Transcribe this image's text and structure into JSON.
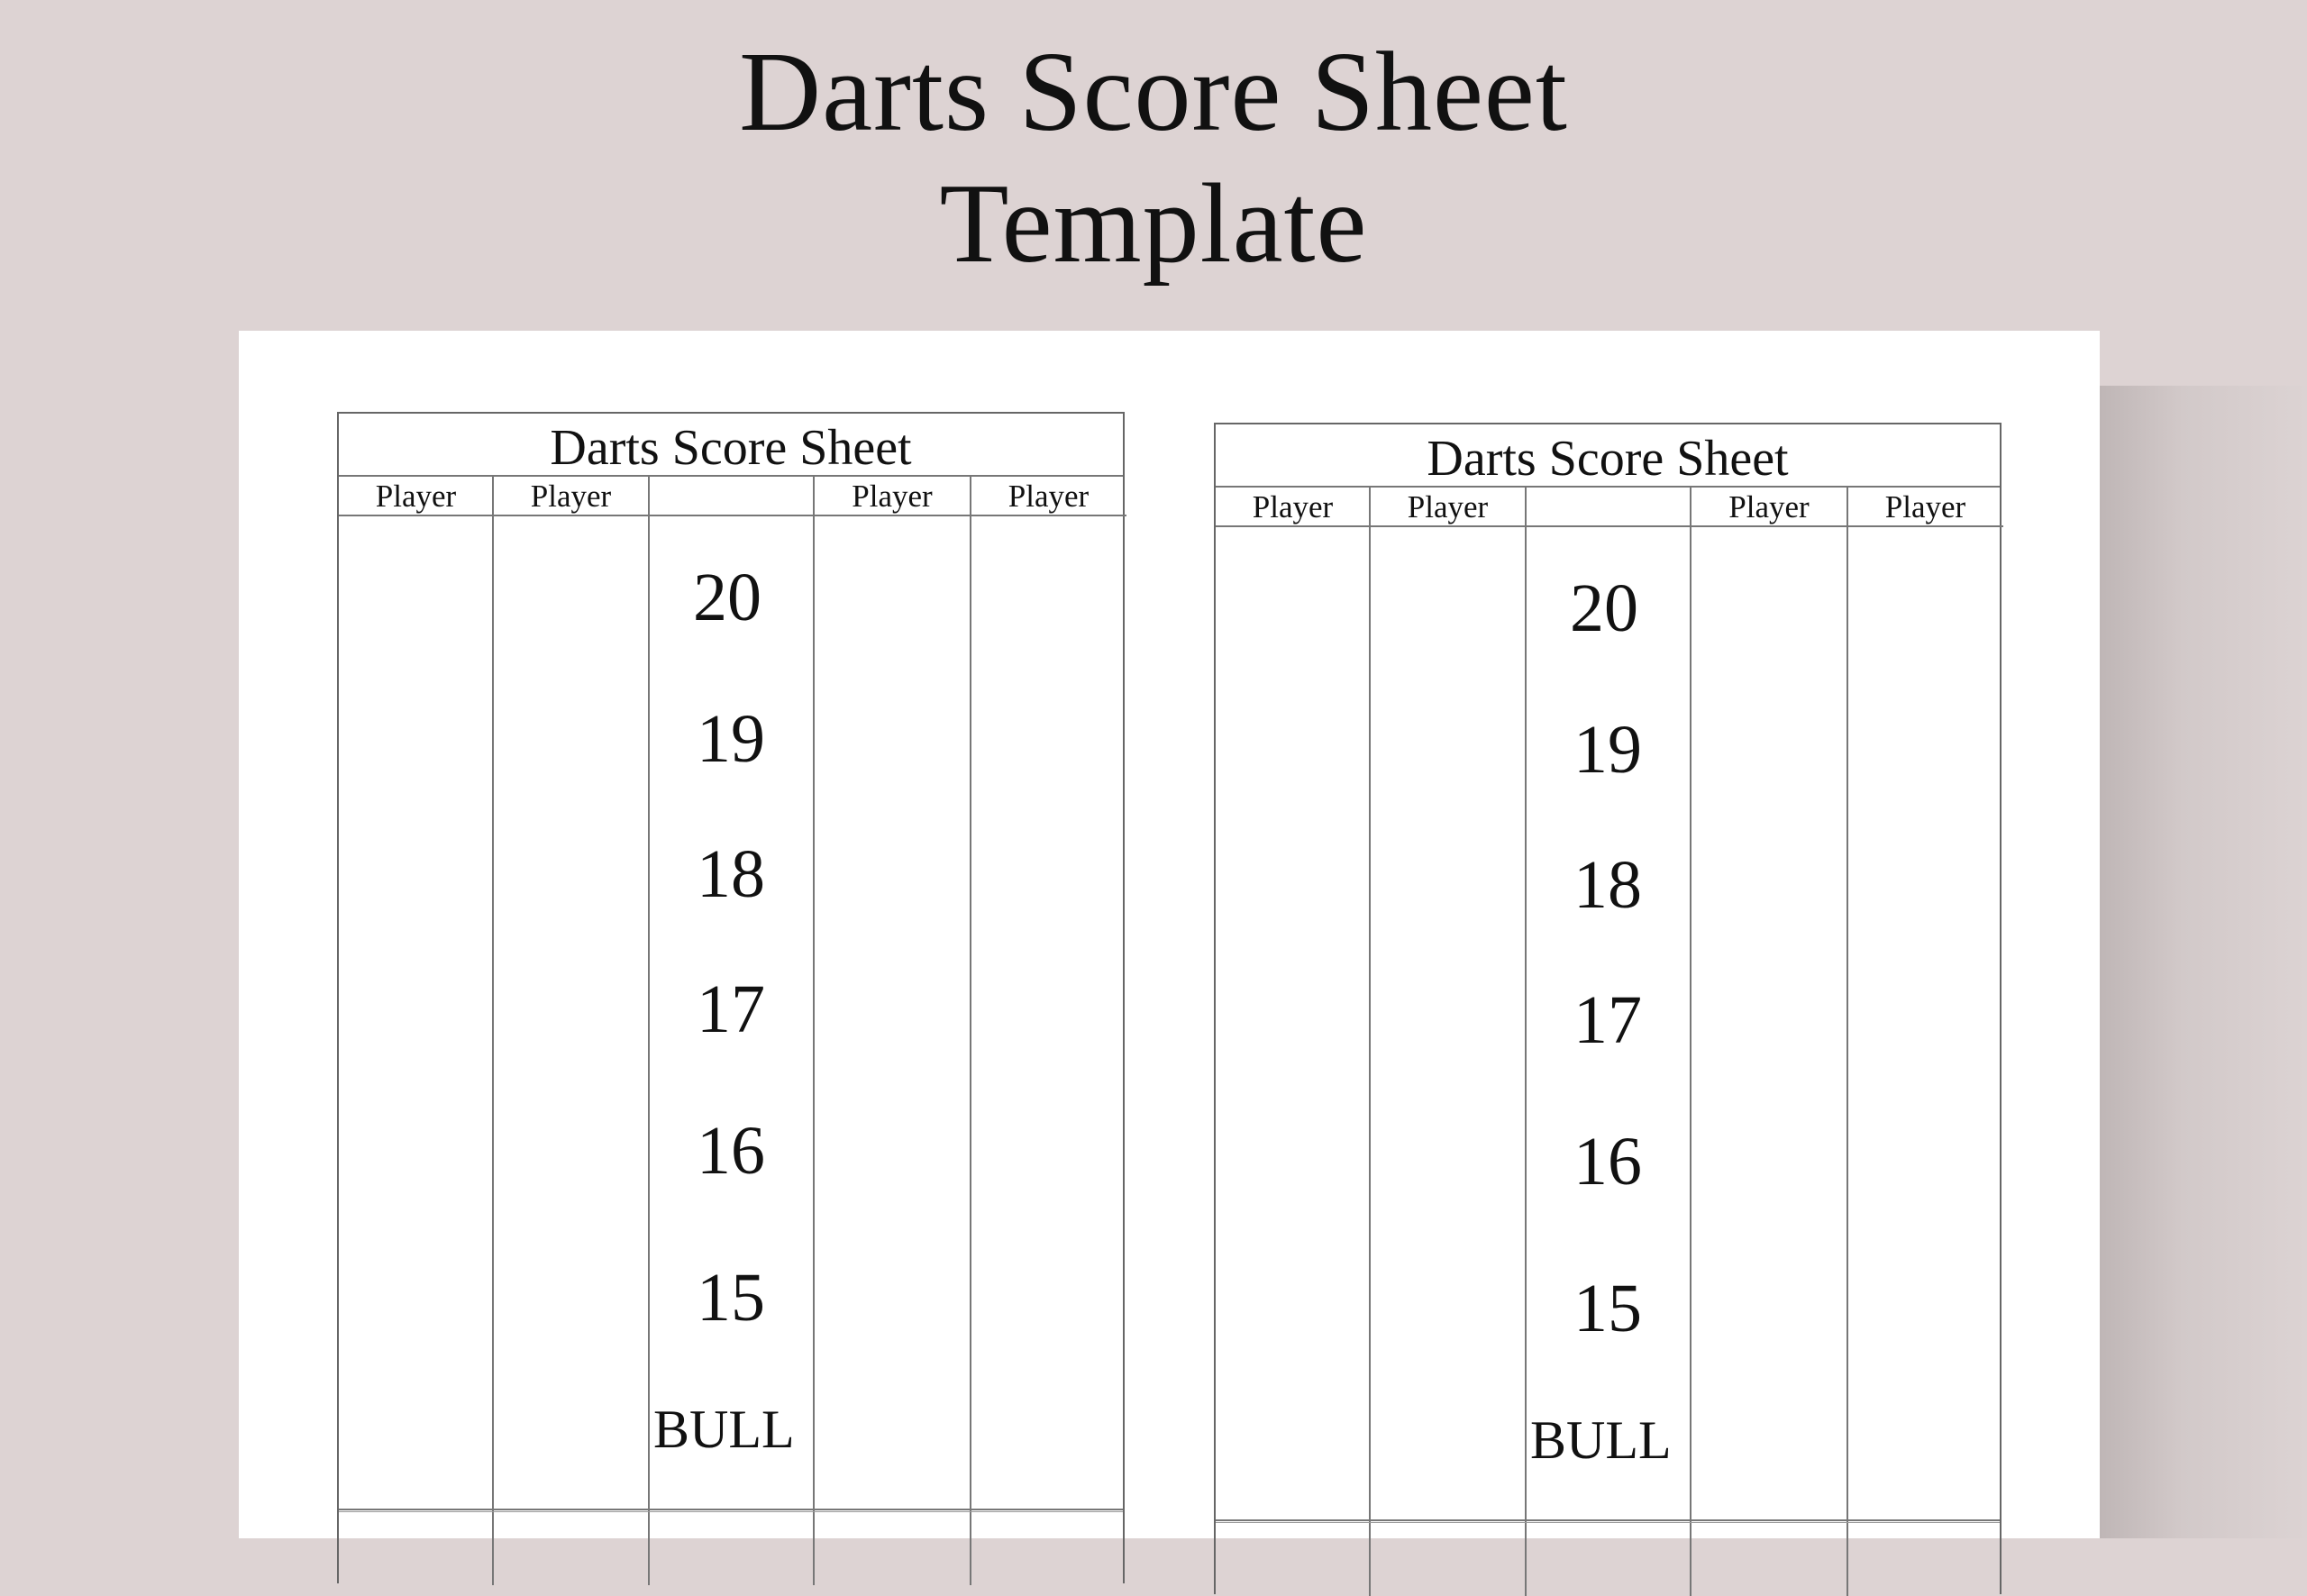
{
  "title_line1": "Darts Score Sheet",
  "title_line2": "Template",
  "sheets": [
    {
      "title": "Darts Score Sheet",
      "headers": [
        "Player",
        "Player",
        "",
        "Player",
        "Player"
      ],
      "targets": [
        "20",
        "19",
        "18",
        "17",
        "16",
        "15",
        "BULL"
      ]
    },
    {
      "title": "Darts Score Sheet",
      "headers": [
        "Player",
        "Player",
        "",
        "Player",
        "Player"
      ],
      "targets": [
        "20",
        "19",
        "18",
        "17",
        "16",
        "15",
        "BULL"
      ]
    }
  ]
}
